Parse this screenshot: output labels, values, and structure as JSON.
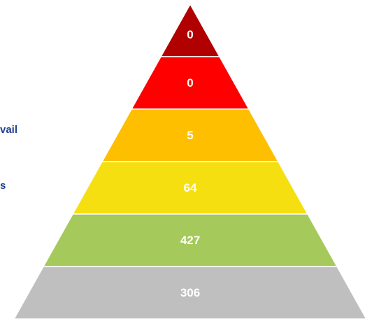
{
  "side_labels": [
    "vail",
    "s"
  ],
  "chart_data": {
    "type": "pyramid",
    "levels": [
      {
        "value": 0,
        "color": "#b00000"
      },
      {
        "value": 0,
        "color": "#fe0000"
      },
      {
        "value": 5,
        "color": "#fdbf00"
      },
      {
        "value": 64,
        "color": "#f6df10"
      },
      {
        "value": 427,
        "color": "#a5c95a"
      },
      {
        "value": 306,
        "color": "#bfbfbf"
      }
    ]
  }
}
